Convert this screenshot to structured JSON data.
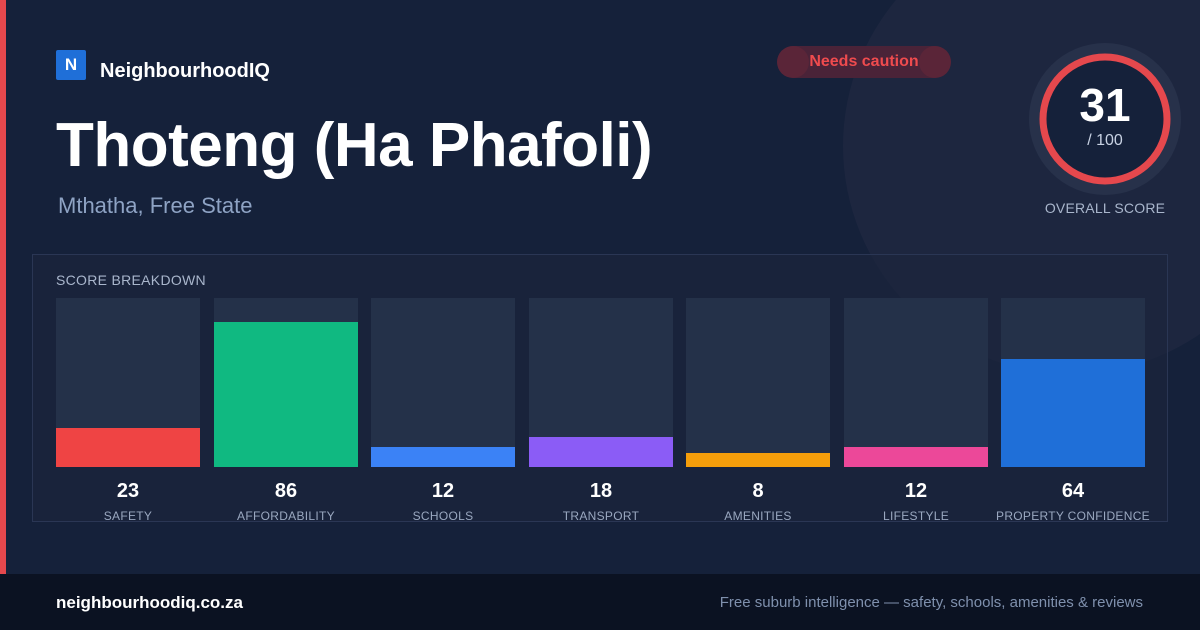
{
  "brand": {
    "logo_letter": "N",
    "name": "NeighbourhoodIQ",
    "logo_color": "#1f6fd8"
  },
  "status_badge": {
    "label": "Needs caution",
    "color": "#ef4b4e"
  },
  "suburb": {
    "name": "Thoteng (Ha Phafoli)",
    "location": "Mthatha, Free State"
  },
  "overall_score": {
    "value": "31",
    "max_label": "/ 100",
    "fraction": 0.31,
    "caption": "OVERALL SCORE",
    "ring_color": "#e5484d"
  },
  "breakdown": {
    "title": "SCORE BREAKDOWN",
    "items": [
      {
        "label": "SAFETY",
        "value": "23",
        "score": 23,
        "color": "#ef4444"
      },
      {
        "label": "AFFORDABILITY",
        "value": "86",
        "score": 86,
        "color": "#10b981"
      },
      {
        "label": "SCHOOLS",
        "value": "12",
        "score": 12,
        "color": "#3b82f6"
      },
      {
        "label": "TRANSPORT",
        "value": "18",
        "score": 18,
        "color": "#8b5cf6"
      },
      {
        "label": "AMENITIES",
        "value": "8",
        "score": 8,
        "color": "#f59e0b"
      },
      {
        "label": "LIFESTYLE",
        "value": "12",
        "score": 12,
        "color": "#ec4899"
      },
      {
        "label": "PROPERTY CONFIDENCE",
        "value": "64",
        "score": 64,
        "color": "#1f6fd8"
      }
    ]
  },
  "footer": {
    "domain": "neighbourhoodiq.co.za",
    "tagline": "Free suburb intelligence — safety, schools, amenities & reviews"
  }
}
